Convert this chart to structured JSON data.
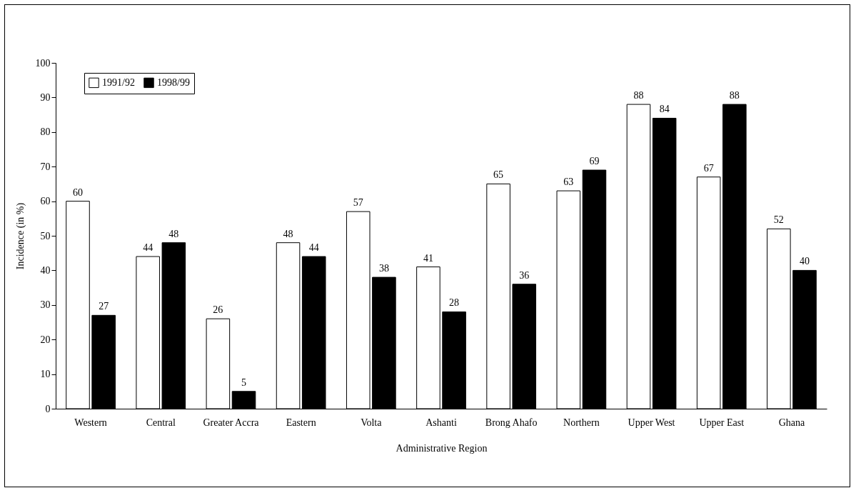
{
  "chart_data": {
    "type": "bar",
    "xlabel": "Administrative Region",
    "ylabel": "Incidence (in %)",
    "categories": [
      "Western",
      "Central",
      "Greater Accra",
      "Eastern",
      "Volta",
      "Ashanti",
      "Brong Ahafo",
      "Northern",
      "Upper West",
      "Upper East",
      "Ghana"
    ],
    "series": [
      {
        "name": "1991/92",
        "color": "#ffffff",
        "values": [
          60,
          44,
          26,
          48,
          57,
          41,
          65,
          63,
          88,
          67,
          52
        ]
      },
      {
        "name": "1998/99",
        "color": "#000000",
        "values": [
          27,
          48,
          5,
          44,
          38,
          28,
          36,
          69,
          84,
          88,
          40
        ]
      }
    ],
    "ylim": [
      0,
      100
    ],
    "yticks": [
      0,
      10,
      20,
      30,
      40,
      50,
      60,
      70,
      80,
      90,
      100
    ],
    "grid": false,
    "legend": "top left",
    "data_labels": true
  }
}
